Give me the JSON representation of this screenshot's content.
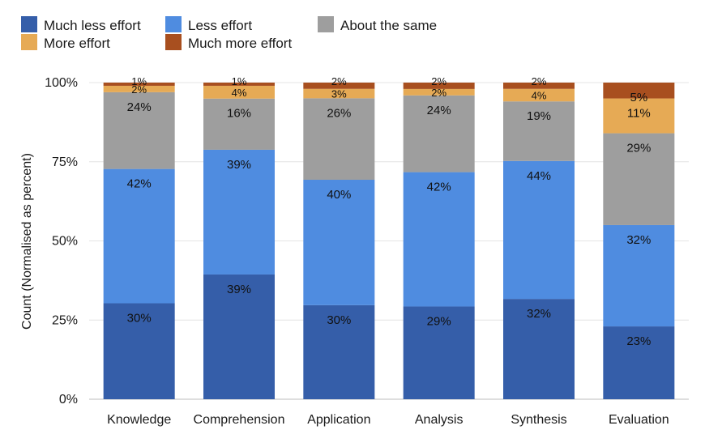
{
  "chart_data": {
    "type": "bar",
    "stacked": true,
    "normalized": true,
    "ylabel": "Count (Normalised as percent)",
    "xlabel": "",
    "ylim": [
      0,
      100
    ],
    "yticks": [
      "0%",
      "25%",
      "50%",
      "75%",
      "100%"
    ],
    "categories": [
      "Knowledge",
      "Comprehension",
      "Application",
      "Analysis",
      "Synthesis",
      "Evaluation"
    ],
    "legend_position": "top-left",
    "grid": true,
    "series": [
      {
        "name": "Much less effort",
        "color": "#355EA9",
        "values": [
          30,
          39,
          30,
          29,
          32,
          23
        ],
        "labels": [
          "30%",
          "39%",
          "30%",
          "29%",
          "32%",
          "23%"
        ]
      },
      {
        "name": "Less effort",
        "color": "#4F8CE0",
        "values": [
          42,
          39,
          40,
          42,
          44,
          32
        ],
        "labels": [
          "42%",
          "39%",
          "40%",
          "42%",
          "44%",
          "32%"
        ]
      },
      {
        "name": "About the same",
        "color": "#9E9E9E",
        "values": [
          24,
          16,
          26,
          24,
          19,
          29
        ],
        "labels": [
          "24%",
          "16%",
          "26%",
          "24%",
          "19%",
          "29%"
        ]
      },
      {
        "name": "More effort",
        "color": "#E6AA55",
        "values": [
          2,
          4,
          3,
          2,
          4,
          11
        ],
        "labels": [
          "2%",
          "4%",
          "3%",
          "2%",
          "4%",
          "11%"
        ]
      },
      {
        "name": "Much more effort",
        "color": "#A84F1F",
        "values": [
          1,
          1,
          2,
          2,
          2,
          5
        ],
        "labels": [
          "1%",
          "1%",
          "2%",
          "2%",
          "2%",
          "5%"
        ]
      }
    ]
  }
}
